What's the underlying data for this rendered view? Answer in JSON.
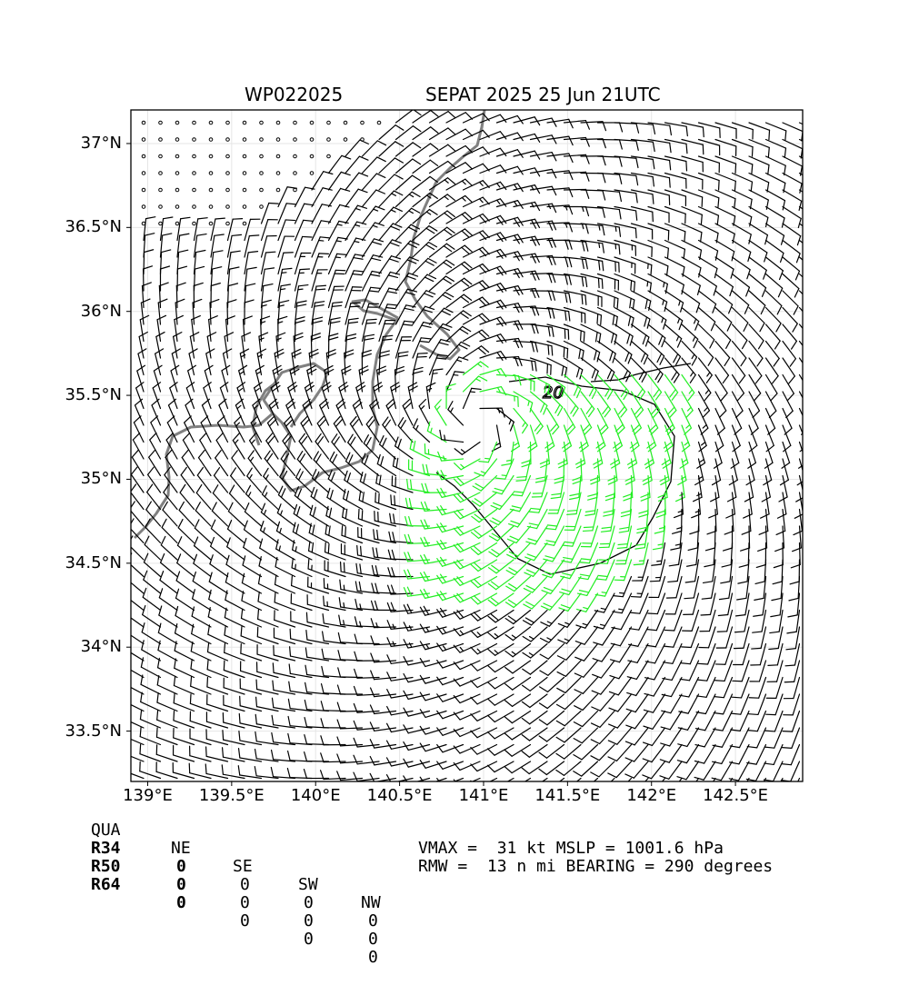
{
  "header": {
    "storm_id": "WP022025",
    "storm_info": "SEPAT 2025 25 Jun 21UTC"
  },
  "map": {
    "lon_range": [
      138.9,
      142.9
    ],
    "lat_range": [
      33.2,
      37.2
    ],
    "lat_ticks": [
      {
        "value": 33.5,
        "label": "33.5°N"
      },
      {
        "value": 34.0,
        "label": "34°N"
      },
      {
        "value": 34.5,
        "label": "34.5°N"
      },
      {
        "value": 35.0,
        "label": "35°N"
      },
      {
        "value": 35.5,
        "label": "35.5°N"
      },
      {
        "value": 36.0,
        "label": "36°N"
      },
      {
        "value": 36.5,
        "label": "36.5°N"
      },
      {
        "value": 37.0,
        "label": "37°N"
      }
    ],
    "lon_ticks": [
      {
        "value": 139.0,
        "label": "139°E"
      },
      {
        "value": 139.5,
        "label": "139.5°E"
      },
      {
        "value": 140.0,
        "label": "140°E"
      },
      {
        "value": 140.5,
        "label": "140.5°E"
      },
      {
        "value": 141.0,
        "label": "141°E"
      },
      {
        "value": 141.5,
        "label": "141.5°E"
      },
      {
        "value": 142.0,
        "label": "142°E"
      },
      {
        "value": 142.5,
        "label": "142.5°E"
      }
    ],
    "storm_center": {
      "lon": 140.95,
      "lat": 35.35
    },
    "contour_label": "20",
    "barb_colors": {
      "normal": "#000000",
      "gale": "#22ee22"
    },
    "coastline_color": "#808080",
    "grid": true
  },
  "radii_table": {
    "headers": [
      "QUA",
      "NE",
      "SE",
      "SW",
      "NW"
    ],
    "rows": [
      {
        "label": "R34",
        "values": [
          "0",
          "0",
          "0",
          "0"
        ]
      },
      {
        "label": "R50",
        "values": [
          "0",
          "0",
          "0",
          "0"
        ]
      },
      {
        "label": "R64",
        "values": [
          "0",
          "0",
          "0",
          "0"
        ]
      }
    ]
  },
  "stats": {
    "line1": "VMAX =  31 kt MSLP = 1001.6 hPa",
    "line2": "RMW =  13 n mi BEARING = 290 degrees"
  }
}
